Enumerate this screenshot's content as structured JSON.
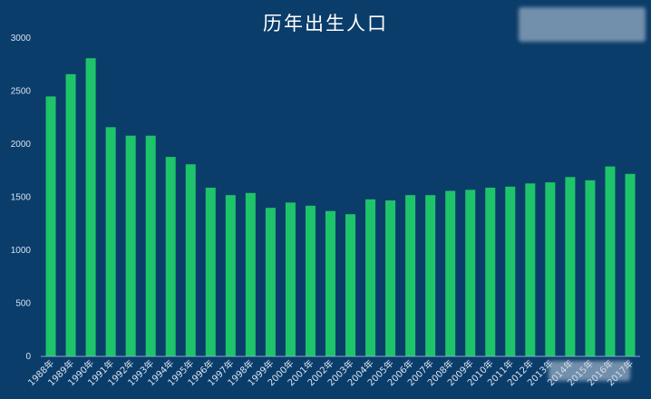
{
  "chart_data": {
    "type": "bar",
    "title": "历年出生人口",
    "xlabel": "",
    "ylabel": "",
    "ylim": [
      0,
      3000
    ],
    "yticks": [
      0,
      500,
      1000,
      1500,
      2000,
      2500,
      3000
    ],
    "grid": false,
    "legend": "none",
    "categories": [
      "1988年",
      "1989年",
      "1990年",
      "1991年",
      "1992年",
      "1993年",
      "1994年",
      "1995年",
      "1996年",
      "1997年",
      "1998年",
      "1999年",
      "2000年",
      "2001年",
      "2002年",
      "2003年",
      "2004年",
      "2005年",
      "2006年",
      "2007年",
      "2008年",
      "2009年",
      "2010年",
      "2011年",
      "2012年",
      "2013年",
      "2014年",
      "2015年",
      "2016年",
      "2017年"
    ],
    "series": [
      {
        "values": [
          2450,
          2660,
          2810,
          2160,
          2080,
          2080,
          1880,
          1810,
          1590,
          1520,
          1540,
          1400,
          1450,
          1420,
          1370,
          1340,
          1480,
          1470,
          1520,
          1520,
          1560,
          1570,
          1590,
          1600,
          1630,
          1640,
          1690,
          1660,
          1790,
          1720
        ],
        "color": "#1ec46a"
      }
    ],
    "background": "#0b3d6b"
  }
}
